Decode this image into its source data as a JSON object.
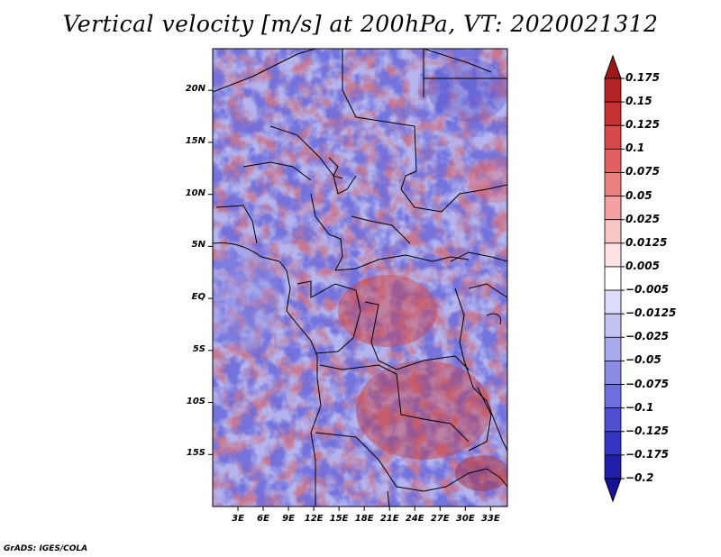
{
  "title": "Vertical velocity [m/s] at 200hPa, VT: 2020021312",
  "credit": "GrADS: IGES/COLA",
  "map": {
    "lon_range": [
      0,
      35
    ],
    "lat_range": [
      -20,
      24
    ],
    "y_ticks": [
      "20N",
      "15N",
      "10N",
      "5N",
      "EQ",
      "5S",
      "10S",
      "15S"
    ],
    "y_tick_values": [
      20,
      15,
      10,
      5,
      0,
      -5,
      -10,
      -15
    ],
    "x_ticks": [
      "3E",
      "6E",
      "9E",
      "12E",
      "15E",
      "18E",
      "21E",
      "24E",
      "27E",
      "30E",
      "33E"
    ],
    "x_tick_values": [
      3,
      6,
      9,
      12,
      15,
      18,
      21,
      24,
      27,
      30,
      33
    ]
  },
  "colorbar": {
    "labels": [
      "0.175",
      "0.15",
      "0.125",
      "0.1",
      "0.075",
      "0.05",
      "0.025",
      "0.0125",
      "0.005",
      "−0.005",
      "−0.0125",
      "−0.025",
      "−0.05",
      "−0.075",
      "−0.1",
      "−0.125",
      "−0.175",
      "−0.2"
    ],
    "colors": [
      "#9e1a1a",
      "#b52424",
      "#c83232",
      "#d84848",
      "#e46060",
      "#ec8080",
      "#f2a0a0",
      "#f8c4c4",
      "#fde2e2",
      "#ffffff",
      "#dcdcfa",
      "#c4c4f4",
      "#a8a8ee",
      "#8c8ce6",
      "#6e6ede",
      "#5050d2",
      "#3434c4",
      "#2020aa",
      "#141496"
    ]
  }
}
